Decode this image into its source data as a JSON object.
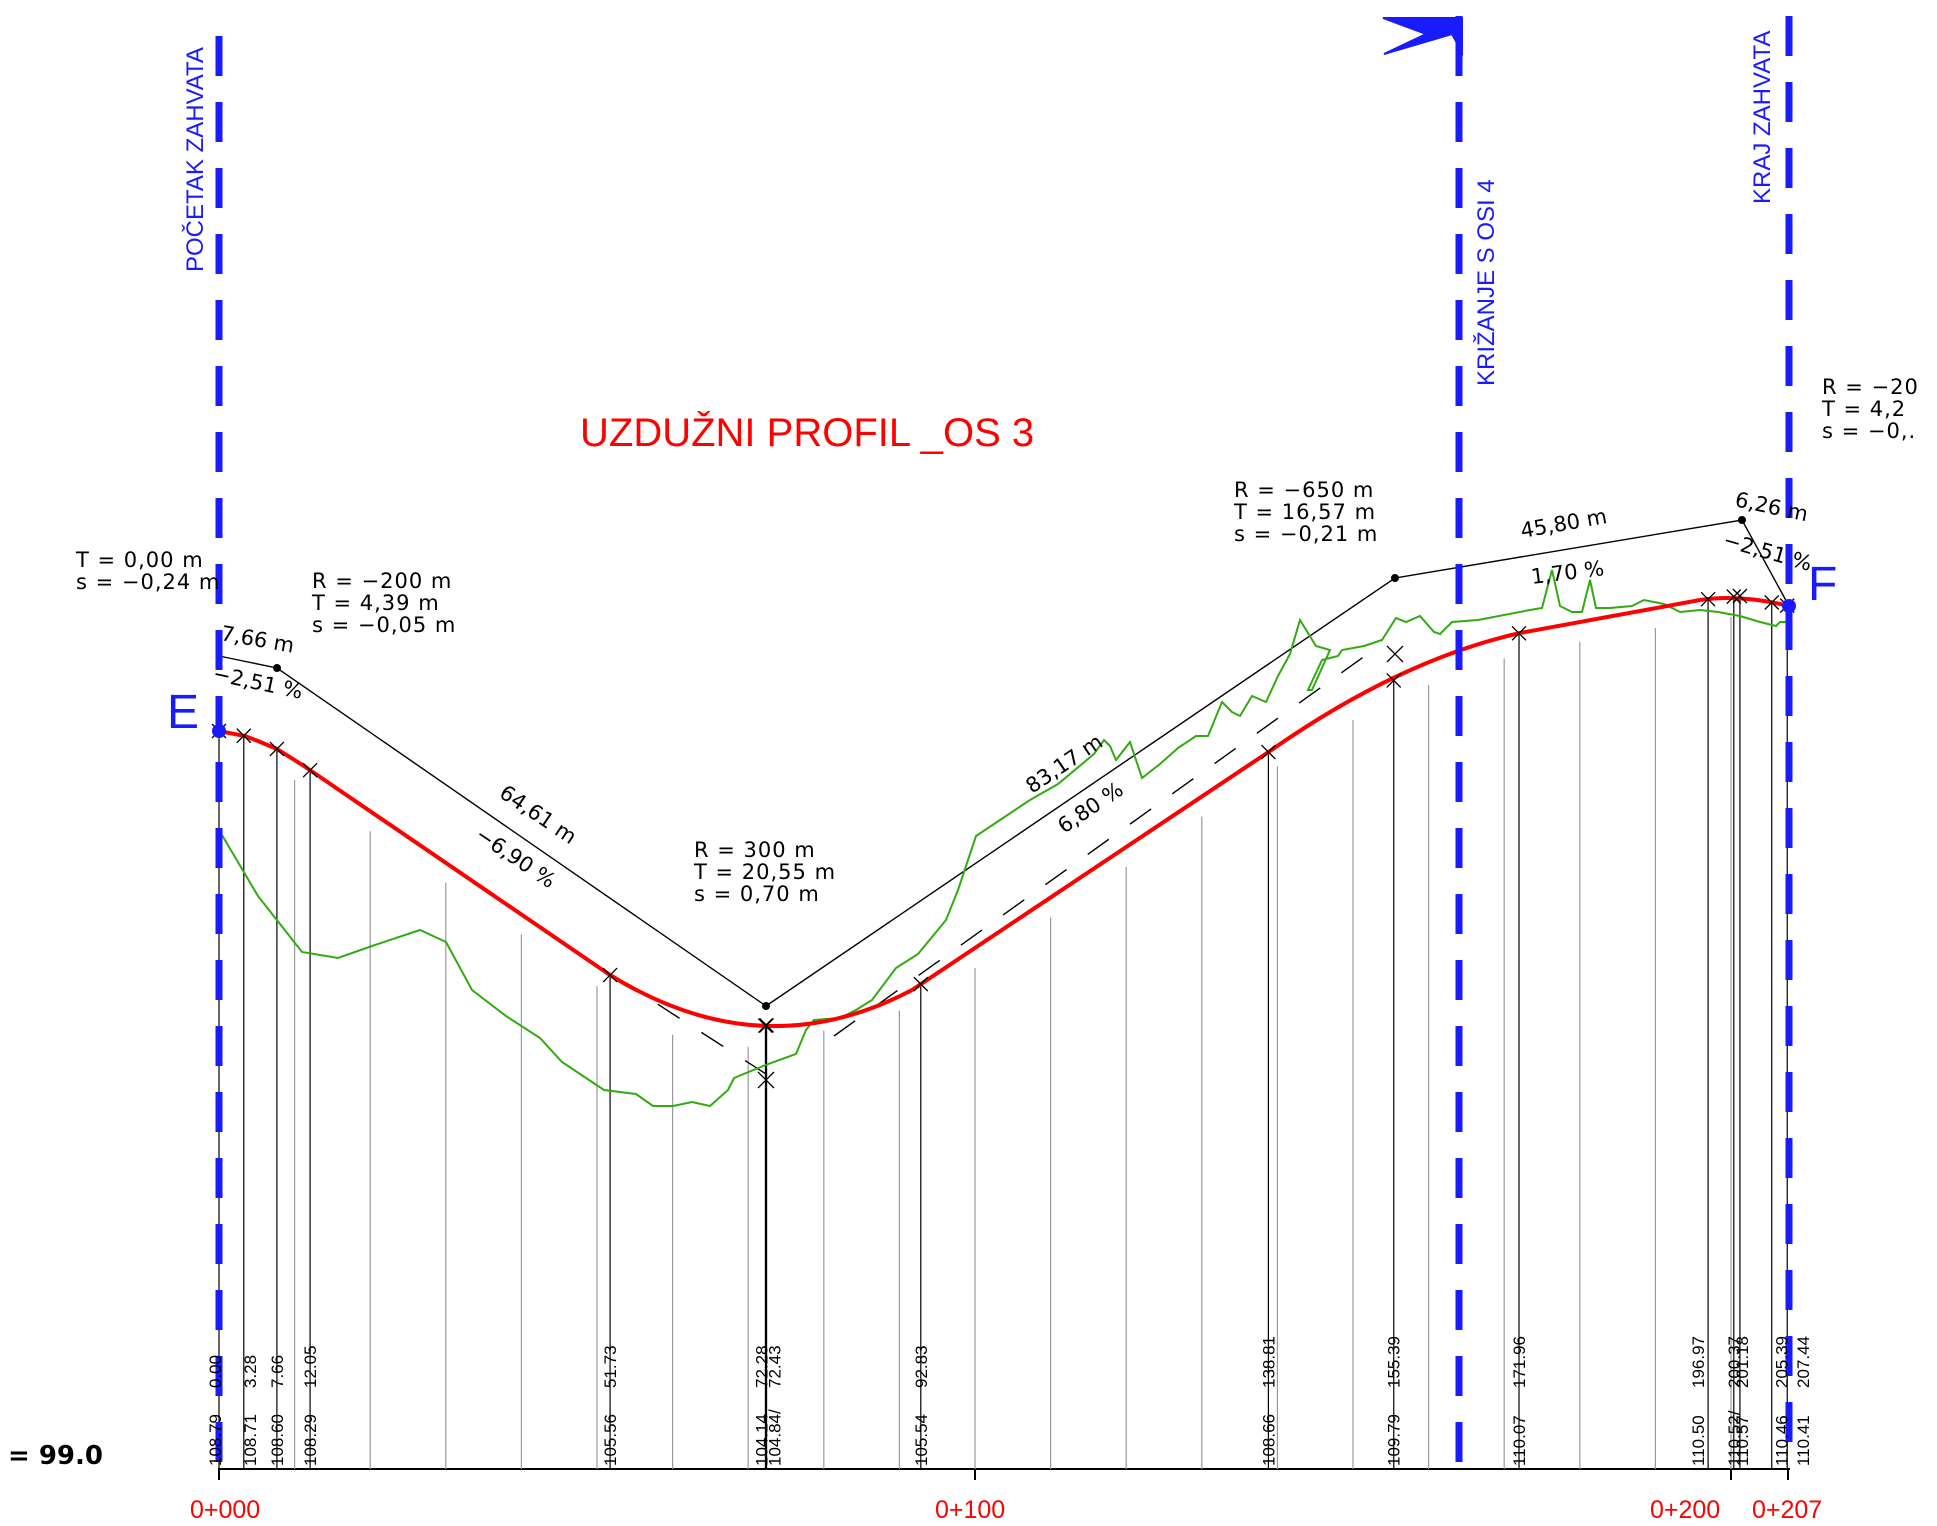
{
  "title": "UZDUŽNI PROFIL  _OS 3",
  "datum_label": "= 99.0",
  "markers": {
    "start": "POČETAK ZAHVATA",
    "crossing": "KRIŽANJE S OSI 4",
    "end": "KRAJ ZAHVATA"
  },
  "points": {
    "start": "E",
    "end": "F"
  },
  "stations": [
    "0+000",
    "0+100",
    "0+200",
    "0+207"
  ],
  "curves": [
    {
      "R": "",
      "T": "T   =  0,00  m",
      "s": "s   =  −0,24  m"
    },
    {
      "R": "R   =  −200   m",
      "T": "T   =  4,39  m",
      "s": "s   =  −0,05  m"
    },
    {
      "R": "R   =  300   m",
      "T": "T   =  20,55  m",
      "s": "s   =  0,70  m"
    },
    {
      "R": "R   =  −650   m",
      "T": "T   =  16,57  m",
      "s": "s   =  −0,21  m"
    },
    {
      "R": "R   =  −20",
      "T": "T   =  4,2",
      "s": "s   =  −0,."
    }
  ],
  "segments": [
    {
      "length": "7,66  m",
      "grade": "−2,51  %"
    },
    {
      "length": "64,61  m",
      "grade": "−6,90  %"
    },
    {
      "length": "83,17  m",
      "grade": "6,80  %"
    },
    {
      "length": "45,80  m",
      "grade": "1,70  %"
    },
    {
      "length": "6,26  m",
      "grade": "−2,51  %"
    }
  ],
  "chainages": [
    "0.00",
    "3.28",
    "7.66",
    "12.05",
    "51.73",
    "72.28",
    "72.43",
    "92.83",
    "138.81",
    "155.39",
    "171.96",
    "196.97",
    "200.37",
    "201.18",
    "205.39",
    "207.44"
  ],
  "elevations": [
    "108.79",
    "108.71",
    "108.60",
    "108.29",
    "105.56",
    "104.14",
    "104.84/",
    "105.54",
    "108.66",
    "109.79",
    "110.07",
    "110.50",
    "110.52/",
    "110.57",
    "110.46",
    "110.41"
  ],
  "colors": {
    "design_line": "#ff0000",
    "terrain_line": "#33aa11",
    "marker": "#1a1aff",
    "text": "#000000"
  }
}
